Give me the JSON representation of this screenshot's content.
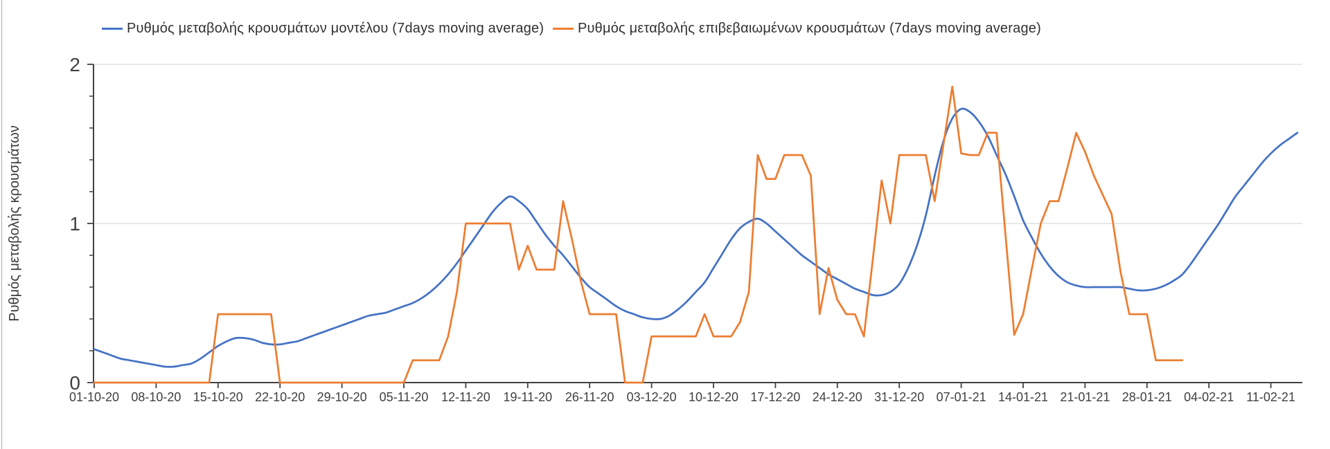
{
  "chart_data": {
    "type": "line",
    "title": "",
    "xlabel": "",
    "ylabel": "Ρυθμός μεταβολής κρουσμάτων",
    "ylim": [
      0,
      2
    ],
    "yticks": [
      "0",
      "1",
      "2"
    ],
    "y_minor_tick_step": 0.2,
    "grid_horizontal_values": [
      1,
      2
    ],
    "grid_color": "#D9D9D9",
    "axis_color": "#404040",
    "tick_label_color": "#404040",
    "legend_position": "top",
    "x_unit": "daily points, day 0 = 01-10-20, one x tick per 7 days",
    "x_tick_labels": [
      "01-10-20",
      "08-10-20",
      "15-10-20",
      "22-10-20",
      "29-10-20",
      "05-11-20",
      "12-11-20",
      "19-11-20",
      "26-11-20",
      "03-12-20",
      "10-12-20",
      "17-12-20",
      "24-12-20",
      "31-12-20",
      "07-01-21",
      "14-01-21",
      "21-01-21",
      "28-01-21",
      "04-02-21",
      "11-02-21"
    ],
    "series": [
      {
        "name": "Ρυθμός μεταβολής κρουσμάτων μοντέλου (7days moving average)",
        "color": "#4472C4",
        "style": "smooth",
        "start_day": 0,
        "values": [
          0.21,
          0.19,
          0.17,
          0.15,
          0.14,
          0.13,
          0.12,
          0.11,
          0.1,
          0.1,
          0.11,
          0.12,
          0.15,
          0.19,
          0.23,
          0.26,
          0.28,
          0.28,
          0.27,
          0.25,
          0.24,
          0.24,
          0.25,
          0.26,
          0.28,
          0.3,
          0.32,
          0.34,
          0.36,
          0.38,
          0.4,
          0.42,
          0.43,
          0.44,
          0.46,
          0.48,
          0.5,
          0.53,
          0.57,
          0.62,
          0.68,
          0.75,
          0.83,
          0.91,
          0.99,
          1.07,
          1.13,
          1.17,
          1.14,
          1.09,
          1.01,
          0.93,
          0.86,
          0.8,
          0.73,
          0.66,
          0.6,
          0.56,
          0.52,
          0.48,
          0.45,
          0.43,
          0.41,
          0.4,
          0.4,
          0.42,
          0.46,
          0.51,
          0.57,
          0.63,
          0.72,
          0.81,
          0.9,
          0.97,
          1.01,
          1.03,
          1.0,
          0.95,
          0.9,
          0.85,
          0.8,
          0.76,
          0.72,
          0.68,
          0.65,
          0.62,
          0.59,
          0.57,
          0.55,
          0.55,
          0.57,
          0.62,
          0.72,
          0.86,
          1.05,
          1.3,
          1.52,
          1.66,
          1.72,
          1.7,
          1.64,
          1.55,
          1.43,
          1.31,
          1.17,
          1.02,
          0.91,
          0.81,
          0.73,
          0.67,
          0.63,
          0.61,
          0.6,
          0.6,
          0.6,
          0.6,
          0.6,
          0.59,
          0.58,
          0.58,
          0.59,
          0.61,
          0.64,
          0.68,
          0.75,
          0.83,
          0.91,
          0.99,
          1.08,
          1.17,
          1.24,
          1.31,
          1.38,
          1.44,
          1.49,
          1.53,
          1.57
        ]
      },
      {
        "name": "Ρυθμός μεταβολής επιβεβαιωμένων κρουσμάτων (7days moving average)",
        "color": "#ED7D31",
        "style": "linear",
        "start_day": 0,
        "values": [
          0,
          0,
          0,
          0,
          0,
          0,
          0,
          0,
          0,
          0,
          0,
          0,
          0,
          0,
          0.43,
          0.43,
          0.43,
          0.43,
          0.43,
          0.43,
          0.43,
          0,
          0,
          0,
          0,
          0,
          0,
          0,
          0,
          0,
          0,
          0,
          0,
          0,
          0,
          0,
          0.14,
          0.14,
          0.14,
          0.14,
          0.29,
          0.57,
          1.0,
          1.0,
          1.0,
          1.0,
          1.0,
          1.0,
          0.71,
          0.86,
          0.71,
          0.71,
          0.71,
          1.14,
          0.9,
          0.64,
          0.43,
          0.43,
          0.43,
          0.43,
          0,
          0,
          0,
          0.29,
          0.29,
          0.29,
          0.29,
          0.29,
          0.29,
          0.43,
          0.29,
          0.29,
          0.29,
          0.38,
          0.57,
          1.43,
          1.28,
          1.28,
          1.43,
          1.43,
          1.43,
          1.3,
          0.43,
          0.72,
          0.52,
          0.43,
          0.43,
          0.29,
          0.77,
          1.27,
          1.0,
          1.43,
          1.43,
          1.43,
          1.43,
          1.14,
          1.5,
          1.86,
          1.44,
          1.43,
          1.43,
          1.57,
          1.57,
          0.93,
          0.3,
          0.43,
          0.72,
          1.0,
          1.14,
          1.14,
          1.35,
          1.57,
          1.45,
          1.3,
          1.18,
          1.06,
          0.7,
          0.43,
          0.43,
          0.43,
          0.14,
          0.14,
          0.14,
          0.14
        ]
      }
    ]
  }
}
